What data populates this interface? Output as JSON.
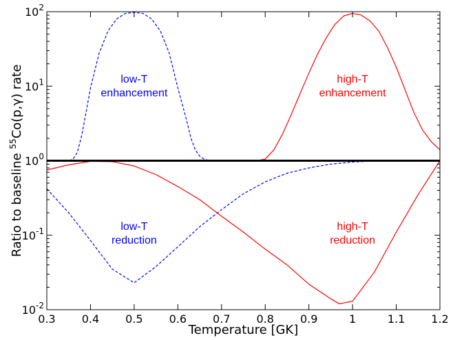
{
  "chart_data": {
    "type": "line",
    "xlabel": "Temperature [GK]",
    "ylabel": {
      "prefix": "Ratio to baseline ",
      "sup": "55",
      "suffix": "Co(p,γ) rate"
    },
    "xlim": [
      0.3,
      1.2
    ],
    "ylim": [
      0.01,
      100
    ],
    "yscale": "log",
    "x_ticks": [
      "0.3",
      "0.4",
      "0.5",
      "0.6",
      "0.7",
      "0.8",
      "0.9",
      "1",
      "1.1",
      "1.2"
    ],
    "y_ticks": [
      {
        "value": 0.01,
        "base": "10",
        "exp": "-2"
      },
      {
        "value": 0.1,
        "base": "10",
        "exp": "-1"
      },
      {
        "value": 1,
        "base": "10",
        "exp": "0"
      },
      {
        "value": 10,
        "base": "10",
        "exp": "1"
      },
      {
        "value": 100,
        "base": "10",
        "exp": "2"
      }
    ],
    "grid": false,
    "series": [
      {
        "color": "#000000",
        "style": "solid",
        "width": 3,
        "x": [
          0.3,
          1.2
        ],
        "y": [
          1,
          1
        ]
      },
      {
        "color": "#0000ff",
        "style": "dashed",
        "width": 1.2,
        "x": [
          0.3,
          0.33,
          0.35,
          0.36,
          0.37,
          0.38,
          0.39,
          0.4,
          0.42,
          0.44,
          0.46,
          0.48,
          0.5,
          0.52,
          0.54,
          0.56,
          0.58,
          0.6,
          0.62,
          0.63,
          0.64,
          0.65,
          0.66,
          0.67,
          0.68,
          0.7,
          1.2
        ],
        "y": [
          1,
          1,
          1,
          1.05,
          1.3,
          2.2,
          4.5,
          9.5,
          28,
          55,
          80,
          95,
          98,
          95,
          80,
          55,
          28,
          9.5,
          3.5,
          2.0,
          1.4,
          1.15,
          1.05,
          1.01,
          1,
          1,
          1
        ]
      },
      {
        "color": "#0000ff",
        "style": "dashed",
        "width": 1.2,
        "x": [
          0.3,
          0.35,
          0.4,
          0.45,
          0.5,
          0.55,
          0.6,
          0.65,
          0.7,
          0.75,
          0.8,
          0.85,
          0.9,
          0.95,
          1.0,
          1.05,
          1.1,
          1.15,
          1.2
        ],
        "y": [
          0.42,
          0.2,
          0.085,
          0.035,
          0.023,
          0.038,
          0.07,
          0.13,
          0.22,
          0.36,
          0.52,
          0.68,
          0.8,
          0.9,
          0.96,
          0.99,
          1,
          1,
          1
        ]
      },
      {
        "color": "#ff0000",
        "style": "solid",
        "width": 1.2,
        "x": [
          0.3,
          0.75,
          0.78,
          0.8,
          0.82,
          0.84,
          0.86,
          0.88,
          0.9,
          0.92,
          0.94,
          0.96,
          0.98,
          1.0,
          1.02,
          1.04,
          1.06,
          1.08,
          1.1,
          1.12,
          1.14,
          1.16,
          1.18,
          1.2
        ],
        "y": [
          1,
          1,
          1,
          1.05,
          1.4,
          2.3,
          4.2,
          8.0,
          15,
          27,
          45,
          68,
          88,
          95,
          90,
          75,
          55,
          33,
          18,
          9.0,
          4.5,
          2.6,
          1.8,
          1.4
        ]
      },
      {
        "color": "#ff0000",
        "style": "solid",
        "width": 1.2,
        "x": [
          0.3,
          0.35,
          0.4,
          0.45,
          0.5,
          0.55,
          0.6,
          0.65,
          0.7,
          0.75,
          0.8,
          0.85,
          0.9,
          0.95,
          0.97,
          1.0,
          1.05,
          1.1,
          1.15,
          1.2
        ],
        "y": [
          0.75,
          0.88,
          0.98,
          0.97,
          0.85,
          0.65,
          0.45,
          0.3,
          0.18,
          0.11,
          0.065,
          0.04,
          0.022,
          0.014,
          0.012,
          0.013,
          0.032,
          0.11,
          0.35,
          1.0
        ]
      }
    ],
    "annotations": [
      {
        "lines": [
          "low-T",
          "enhancement"
        ],
        "x": 0.5,
        "y": 9,
        "color": "#0000ff"
      },
      {
        "lines": [
          "high-T",
          "enhancement"
        ],
        "x": 1.0,
        "y": 9,
        "color": "#ff0000"
      },
      {
        "lines": [
          "low-T",
          "reduction"
        ],
        "x": 0.5,
        "y": 0.095,
        "color": "#0000ff"
      },
      {
        "lines": [
          "high-T",
          "reduction"
        ],
        "x": 1.0,
        "y": 0.095,
        "color": "#ff0000"
      }
    ]
  }
}
